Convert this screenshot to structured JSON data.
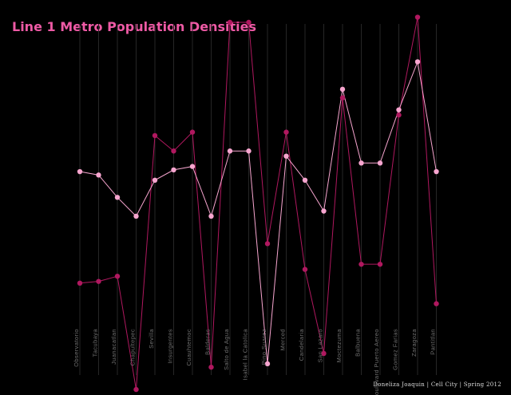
{
  "title": "Line 1 Metro Population Densities",
  "credit": "Doneliza Joaquin | Cell City | Spring 2012",
  "colors": {
    "background": "#000000",
    "title": "#ee5aa5",
    "series_a": "#b0185f",
    "series_b": "#f7a5cf",
    "gridline": "#262626",
    "station_label": "#6f6f6f"
  },
  "chart_data": {
    "type": "line",
    "title": "Line 1 Metro Population Densities",
    "xlabel": "",
    "ylabel": "",
    "grid": true,
    "y_axis_labels_shown": false,
    "ylim": [
      0,
      100
    ],
    "categories": [
      "Observatorio",
      "Tacubaya",
      "Juanacatlan",
      "Chapultepec",
      "Sevilla",
      "Insurgentes",
      "Cuauhtemoc",
      "Balderas",
      "Salto de Agua",
      "Isabel la Catolica",
      "Pino Suarez",
      "Merced",
      "Candelaria",
      "San Lazaro",
      "Moctezuma",
      "Balbuena",
      "Boulevard Puerto Aereo",
      "Gomez Farias",
      "Zaragoza",
      "Pantitlan"
    ],
    "series": [
      {
        "values": [
          24,
          24.5,
          26,
          -7,
          67,
          62.5,
          68,
          -0.5,
          100,
          100,
          35.5,
          68,
          28,
          3.5,
          78,
          29.5,
          29.5,
          73,
          101.5,
          18
        ]
      },
      {
        "values": [
          56.5,
          55.5,
          49,
          43.5,
          54,
          57,
          58,
          43.5,
          62.5,
          62.5,
          0.5,
          61,
          54,
          45,
          80.5,
          59,
          59,
          74.5,
          88.5,
          56.5
        ]
      }
    ]
  }
}
